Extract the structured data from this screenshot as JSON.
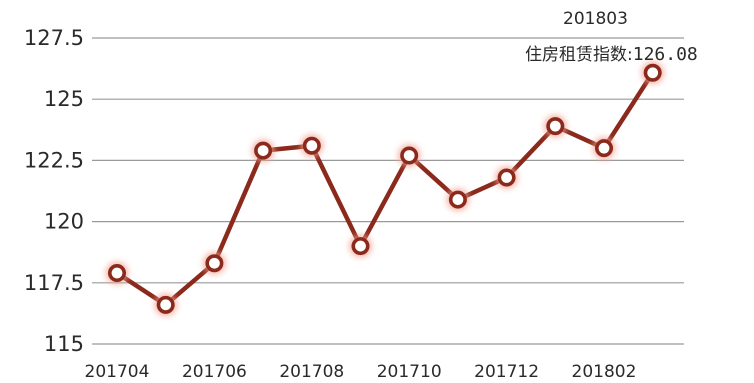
{
  "chart_data": {
    "type": "line",
    "x": [
      "201704",
      "201705",
      "201706",
      "201707",
      "201708",
      "201709",
      "201710",
      "201711",
      "201712",
      "201801",
      "201802",
      "201803"
    ],
    "x_tick_labels": [
      "201704",
      "201706",
      "201708",
      "201710",
      "201712",
      "201802"
    ],
    "values": [
      117.9,
      116.6,
      118.3,
      122.9,
      123.1,
      119.0,
      122.7,
      120.9,
      121.8,
      123.9,
      123.0,
      126.08
    ],
    "ylim": [
      115,
      127.5
    ],
    "y_ticks": [
      "115",
      "117.5",
      "120",
      "122.5",
      "125",
      "127.5"
    ],
    "grid": true,
    "annotation": {
      "period": "201803",
      "label": "住房租赁指数:",
      "value": "126.08"
    },
    "colors": {
      "line": "#8b2a1c",
      "marker_fill": "#ffffff",
      "marker_glow": "#f2a393",
      "grid": "#9a9a9a"
    }
  }
}
